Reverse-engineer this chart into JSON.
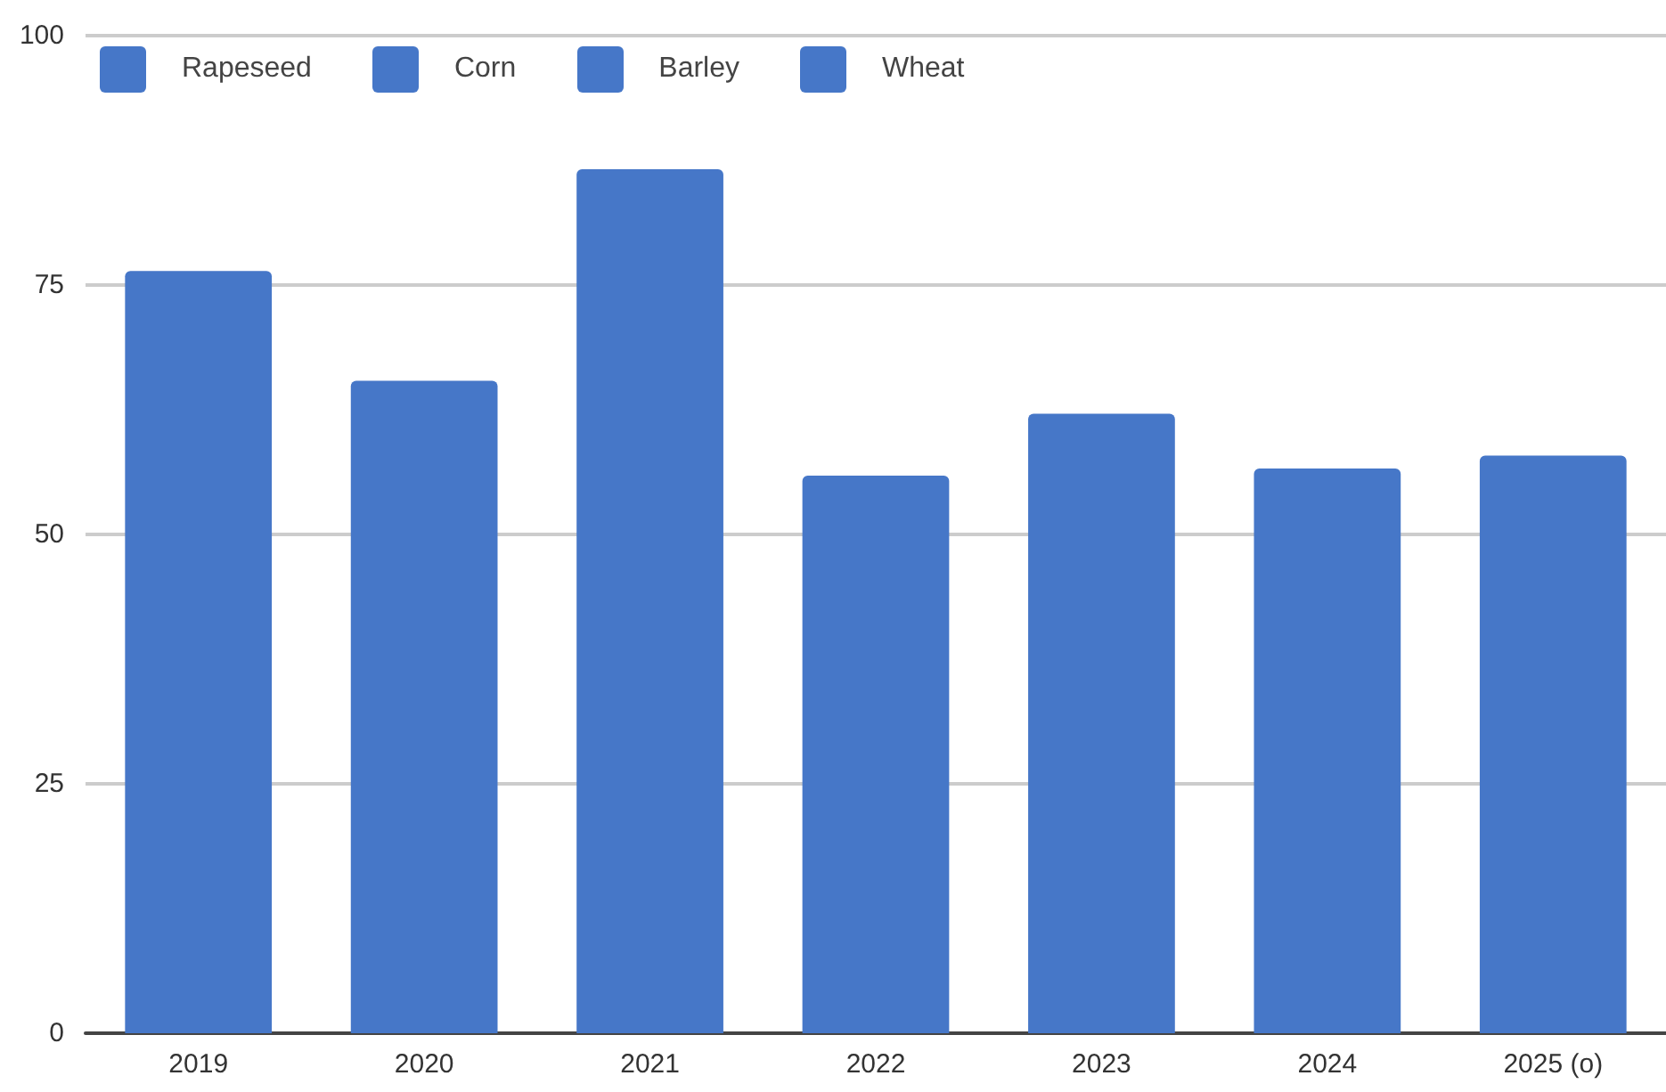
{
  "chart_data": {
    "type": "bar",
    "categories": [
      "2019",
      "2020",
      "2021",
      "2022",
      "2023",
      "2024",
      "2025 (o)"
    ],
    "values": [
      76.4,
      65.4,
      86.6,
      55.9,
      62.1,
      56.6,
      57.9
    ],
    "color": "#4677c8",
    "ylim": [
      0,
      100
    ],
    "yticks": [
      0,
      25,
      50,
      75,
      100
    ],
    "grid": "y",
    "annotations": [
      "Rapeseed",
      "Corn",
      "Barley",
      "Wheat"
    ]
  }
}
